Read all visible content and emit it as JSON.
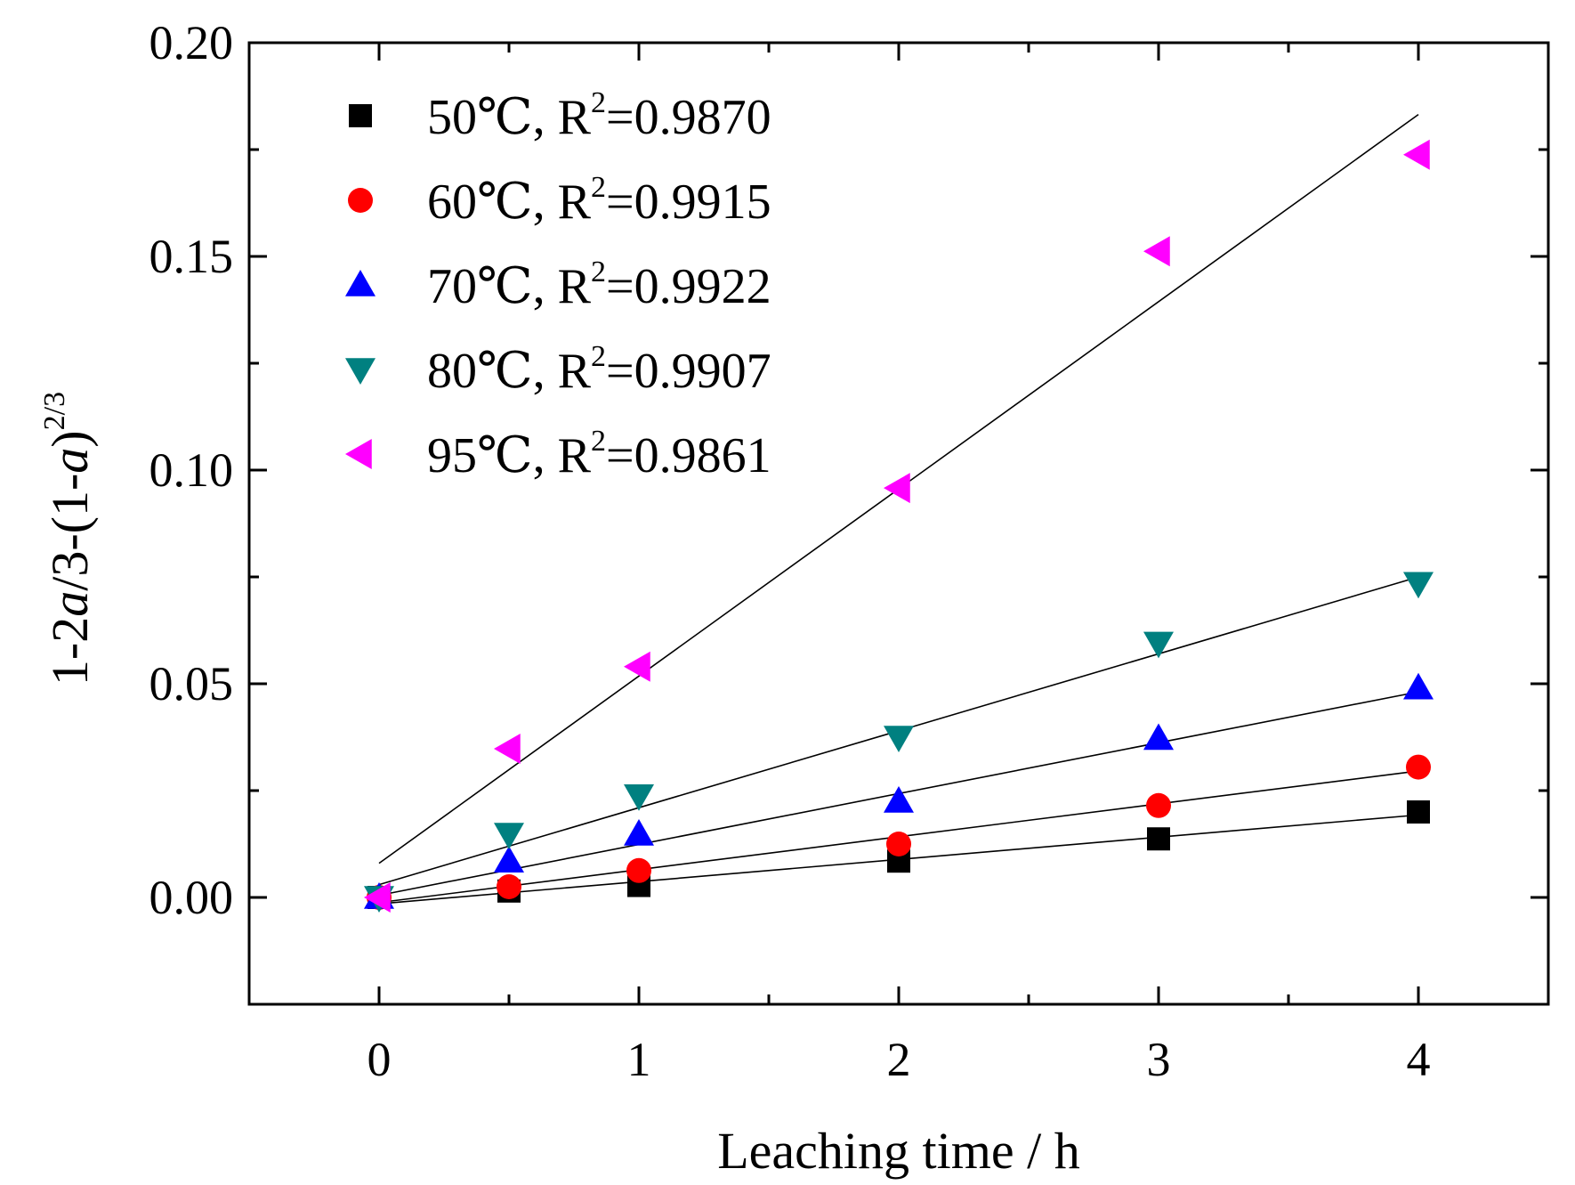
{
  "chart_data": {
    "type": "scatter",
    "title": "",
    "xlabel": "Leaching time / h",
    "ylabel": {
      "prefix": "1-2",
      "italic_a_1": "a",
      "middle": "/3-(1-",
      "italic_a_2": "a",
      "close": ")",
      "exponent": "2/3"
    },
    "xlim": [
      -0.5,
      4.5
    ],
    "ylim": [
      -0.025,
      0.2
    ],
    "x_ticks": [
      0,
      1,
      2,
      3,
      4
    ],
    "x_tick_labels": [
      "0",
      "1",
      "2",
      "3",
      "4"
    ],
    "y_ticks": [
      0.0,
      0.05,
      0.1,
      0.15,
      0.2
    ],
    "y_tick_labels": [
      "0.00",
      "0.05",
      "0.10",
      "0.15",
      "0.20"
    ],
    "grid": false,
    "legend_position": "top-left",
    "x": [
      0,
      0.5,
      1,
      2,
      3,
      4
    ],
    "series": [
      {
        "name": "50℃",
        "temp": "50℃",
        "r2_label": "R",
        "r2_sup": "2",
        "r2_value": "=0.9870",
        "marker": "square",
        "color": "#000000",
        "values": [
          0.0,
          0.0015,
          0.0028,
          0.0085,
          0.0137,
          0.02
        ],
        "fit": [
          -0.0015,
          0.0052
        ]
      },
      {
        "name": "60℃",
        "temp": "60℃",
        "r2_label": "R",
        "r2_sup": "2",
        "r2_value": "=0.9915",
        "marker": "circle",
        "color": "#ff0000",
        "values": [
          0.0,
          0.0025,
          0.0063,
          0.0125,
          0.0215,
          0.0305
        ],
        "fit": [
          -0.0012,
          0.0077
        ]
      },
      {
        "name": "70℃",
        "temp": "70℃",
        "r2_label": "R",
        "r2_sup": "2",
        "r2_value": "=0.9922",
        "marker": "triangle-up",
        "color": "#0000ff",
        "values": [
          0.0,
          0.0085,
          0.0148,
          0.0225,
          0.0372,
          0.049
        ],
        "fit": [
          0.0005,
          0.0119
        ]
      },
      {
        "name": "80℃",
        "temp": "80℃",
        "r2_label": "R",
        "r2_sup": "2",
        "r2_value": "=0.9907",
        "marker": "triangle-down",
        "color": "#008080",
        "values": [
          0.0,
          0.0148,
          0.0238,
          0.0375,
          0.0595,
          0.0735
        ],
        "fit": [
          0.003,
          0.018
        ]
      },
      {
        "name": "95℃",
        "temp": "95℃",
        "r2_label": "R",
        "r2_sup": "2",
        "r2_value": "=0.9861",
        "marker": "triangle-left",
        "color": "#ff00ff",
        "values": [
          0.0,
          0.0348,
          0.054,
          0.0958,
          0.1512,
          0.1738
        ],
        "fit": [
          0.008,
          0.0438
        ]
      }
    ]
  }
}
